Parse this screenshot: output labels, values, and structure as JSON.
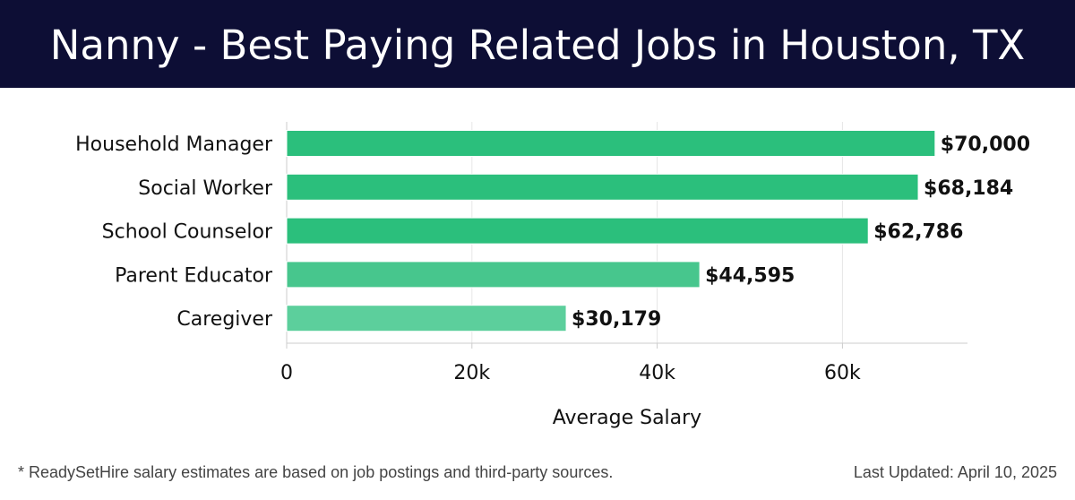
{
  "header": {
    "title": "Nanny - Best Paying Related Jobs in Houston, TX"
  },
  "chart_data": {
    "type": "bar",
    "orientation": "horizontal",
    "title": "Nanny - Best Paying Related Jobs in Houston, TX",
    "xlabel": "Average Salary",
    "ylabel": "",
    "xlim": [
      0,
      73500
    ],
    "grid": true,
    "categories": [
      "Household Manager",
      "Social Worker",
      "School Counselor",
      "Parent Educator",
      "Caregiver"
    ],
    "values": [
      70000,
      68184,
      62786,
      44595,
      30179
    ],
    "value_labels": [
      "$70,000",
      "$68,184",
      "$62,786",
      "$44,595",
      "$30,179"
    ],
    "x_ticks": [
      0,
      20000,
      40000,
      60000
    ],
    "x_tick_labels": [
      "0",
      "20k",
      "40k",
      "60k"
    ],
    "bar_colors": [
      "#2bbf7c",
      "#2bbf7c",
      "#2bbf7c",
      "#47c68d",
      "#5ccf9c"
    ]
  },
  "footer": {
    "note": "* ReadySetHire salary estimates are based on job postings and third-party sources.",
    "updated": "Last Updated: April 10, 2025"
  }
}
